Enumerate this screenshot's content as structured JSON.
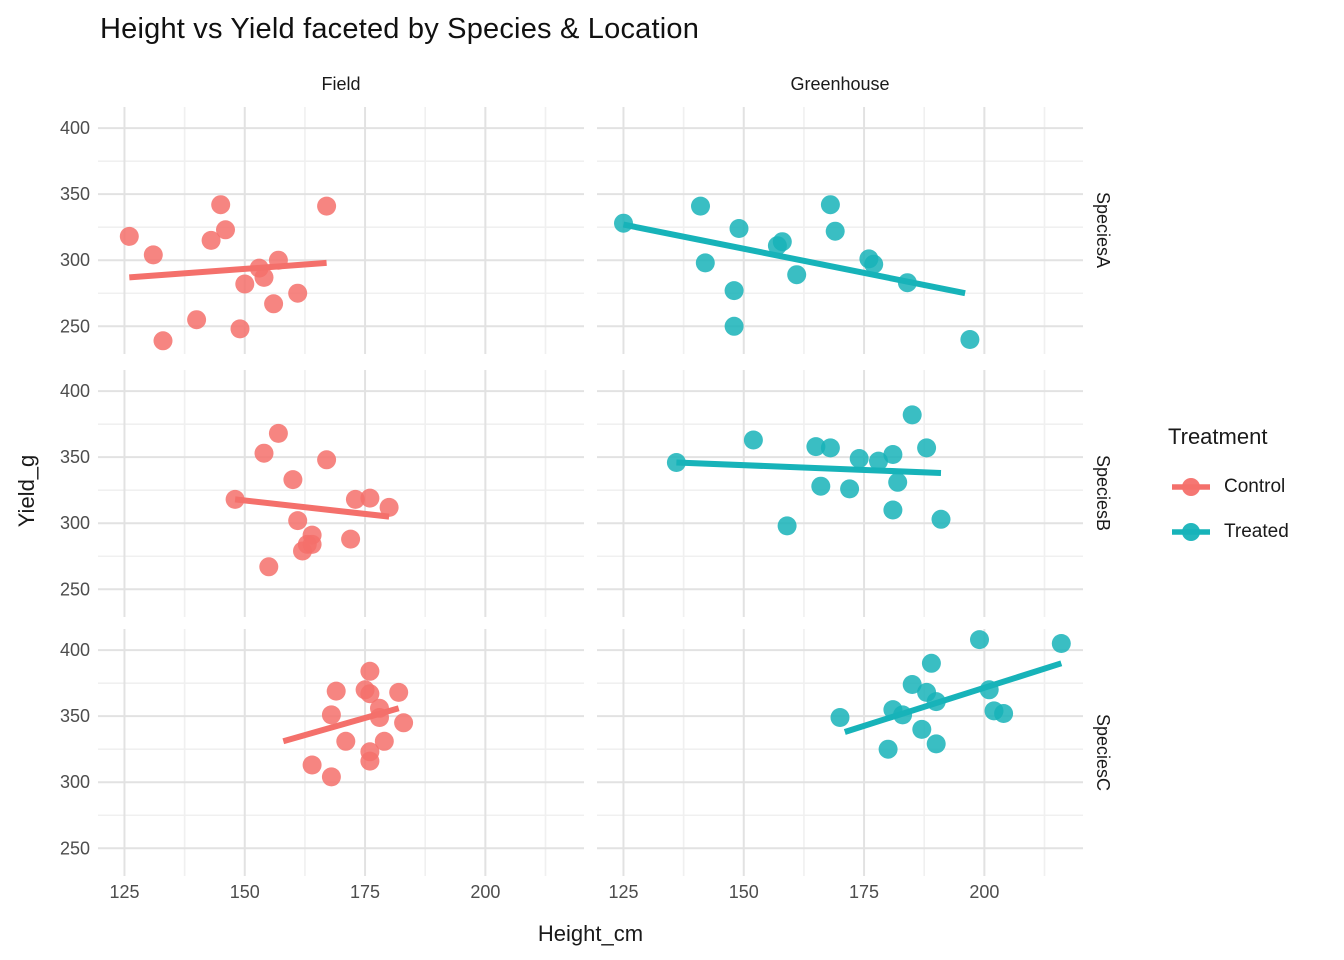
{
  "chart_data": {
    "type": "scatter",
    "title": "Height vs Yield faceted by Species & Location",
    "xlabel": "Height_cm",
    "ylabel": "Yield_g",
    "facet_columns": [
      "Field",
      "Greenhouse"
    ],
    "facet_rows": [
      "SpeciesA",
      "SpeciesB",
      "SpeciesC"
    ],
    "xlim": [
      119.5,
      220.5
    ],
    "ylim": [
      229,
      416
    ],
    "x_ticks": [
      125,
      150,
      175,
      200
    ],
    "y_ticks": [
      400,
      350,
      300,
      250
    ],
    "x_minor_ticks": [
      137.5,
      162.5,
      187.5,
      212.5
    ],
    "y_minor_ticks": [
      275,
      325,
      375
    ],
    "grid": true,
    "legend": {
      "title": "Treatment",
      "position": "right",
      "entries": [
        {
          "label": "Control",
          "color": "#F4706B"
        },
        {
          "label": "Treated",
          "color": "#17B3B9"
        }
      ]
    },
    "series": [
      {
        "location": "Field",
        "species": "SpeciesA",
        "treatment": "Control",
        "points": [
          [
            126,
            318
          ],
          [
            131,
            304
          ],
          [
            133,
            239
          ],
          [
            140,
            255
          ],
          [
            143,
            315
          ],
          [
            145,
            342
          ],
          [
            146,
            323
          ],
          [
            149,
            248
          ],
          [
            150,
            282
          ],
          [
            153,
            294
          ],
          [
            154,
            287
          ],
          [
            156,
            267
          ],
          [
            157,
            300
          ],
          [
            161,
            275
          ],
          [
            167,
            341
          ]
        ],
        "trend": {
          "x1": 126,
          "y1": 287,
          "x2": 167,
          "y2": 298
        }
      },
      {
        "location": "Greenhouse",
        "species": "SpeciesA",
        "treatment": "Treated",
        "points": [
          [
            125,
            328
          ],
          [
            141,
            341
          ],
          [
            142,
            298
          ],
          [
            148,
            277
          ],
          [
            148,
            250
          ],
          [
            149,
            324
          ],
          [
            157,
            311
          ],
          [
            158,
            314
          ],
          [
            161,
            289
          ],
          [
            168,
            342
          ],
          [
            169,
            322
          ],
          [
            176,
            301
          ],
          [
            177,
            297
          ],
          [
            184,
            283
          ],
          [
            197,
            240
          ]
        ],
        "trend": {
          "x1": 125,
          "y1": 327,
          "x2": 196,
          "y2": 275
        }
      },
      {
        "location": "Field",
        "species": "SpeciesB",
        "treatment": "Control",
        "points": [
          [
            148,
            318
          ],
          [
            154,
            353
          ],
          [
            155,
            267
          ],
          [
            157,
            368
          ],
          [
            160,
            333
          ],
          [
            161,
            302
          ],
          [
            162,
            279
          ],
          [
            163,
            284
          ],
          [
            164,
            291
          ],
          [
            164,
            284
          ],
          [
            167,
            348
          ],
          [
            172,
            288
          ],
          [
            173,
            318
          ],
          [
            176,
            319
          ],
          [
            180,
            312
          ]
        ],
        "trend": {
          "x1": 148,
          "y1": 318,
          "x2": 180,
          "y2": 305
        }
      },
      {
        "location": "Greenhouse",
        "species": "SpeciesB",
        "treatment": "Treated",
        "points": [
          [
            136,
            346
          ],
          [
            152,
            363
          ],
          [
            159,
            298
          ],
          [
            165,
            358
          ],
          [
            166,
            328
          ],
          [
            168,
            357
          ],
          [
            172,
            326
          ],
          [
            174,
            349
          ],
          [
            178,
            347
          ],
          [
            181,
            352
          ],
          [
            181,
            310
          ],
          [
            182,
            331
          ],
          [
            185,
            382
          ],
          [
            188,
            357
          ],
          [
            191,
            303
          ]
        ],
        "trend": {
          "x1": 136,
          "y1": 346,
          "x2": 191,
          "y2": 338
        }
      },
      {
        "location": "Field",
        "species": "SpeciesC",
        "treatment": "Control",
        "points": [
          [
            164,
            313
          ],
          [
            168,
            304
          ],
          [
            168,
            351
          ],
          [
            169,
            369
          ],
          [
            171,
            331
          ],
          [
            175,
            370
          ],
          [
            176,
            384
          ],
          [
            176,
            367
          ],
          [
            176,
            323
          ],
          [
            176,
            316
          ],
          [
            178,
            356
          ],
          [
            178,
            349
          ],
          [
            179,
            331
          ],
          [
            182,
            368
          ],
          [
            183,
            345
          ]
        ],
        "trend": {
          "x1": 158,
          "y1": 331,
          "x2": 182,
          "y2": 356
        }
      },
      {
        "location": "Greenhouse",
        "species": "SpeciesC",
        "treatment": "Treated",
        "points": [
          [
            170,
            349
          ],
          [
            180,
            325
          ],
          [
            181,
            355
          ],
          [
            183,
            351
          ],
          [
            185,
            374
          ],
          [
            187,
            340
          ],
          [
            188,
            368
          ],
          [
            189,
            390
          ],
          [
            190,
            361
          ],
          [
            190,
            329
          ],
          [
            199,
            408
          ],
          [
            201,
            370
          ],
          [
            202,
            354
          ],
          [
            204,
            352
          ],
          [
            216,
            405
          ]
        ],
        "trend": {
          "x1": 171,
          "y1": 338,
          "x2": 216,
          "y2": 390
        }
      }
    ]
  }
}
